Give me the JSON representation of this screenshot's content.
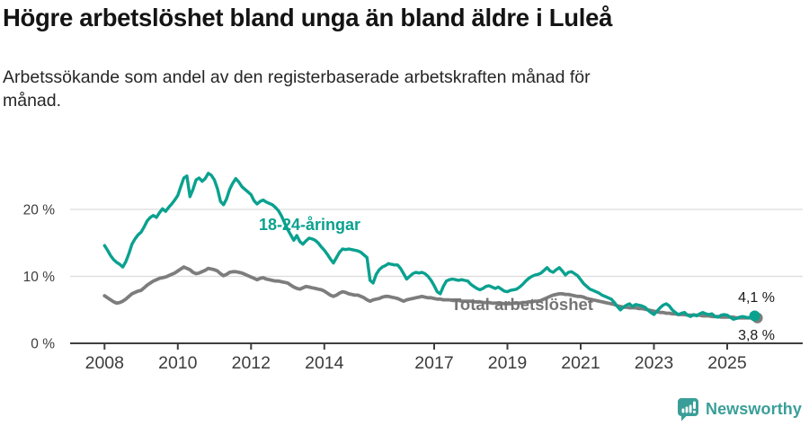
{
  "header": {
    "title": "Högre arbetslöshet bland unga än bland äldre i Luleå",
    "subtitle": "Arbetssökande som andel av den registerbaserade arbetskraften månad för månad."
  },
  "chart_data": {
    "type": "line",
    "unit": "%",
    "frequency": "monthly",
    "start_year": 2008,
    "start_month": 1,
    "end_year": 2025,
    "end_month": 10,
    "title": "Högre arbetslöshet bland unga än bland äldre i Luleå",
    "xlabel": "",
    "ylabel": "Arbetssökande som andel av den registerbaserade arbetskraften",
    "grid": "horizontal",
    "ylim": [
      0,
      26.5
    ],
    "x_ticks": [
      2008,
      2010,
      2012,
      2014,
      2017,
      2019,
      2021,
      2023,
      2025
    ],
    "y_gridlines": [
      10,
      20
    ],
    "y_ticks": [
      {
        "value": 0,
        "label": "0 %"
      },
      {
        "value": 10,
        "label": "10 %"
      },
      {
        "value": 20,
        "label": "20 %"
      }
    ],
    "series": [
      {
        "name": "Total arbetslöshet",
        "color": "#7d7d7d",
        "values": [
          7.1,
          6.8,
          6.5,
          6.2,
          6.0,
          6.1,
          6.3,
          6.6,
          7.0,
          7.4,
          7.6,
          7.8,
          7.9,
          8.3,
          8.7,
          9.0,
          9.3,
          9.5,
          9.7,
          9.8,
          9.9,
          10.1,
          10.3,
          10.5,
          10.8,
          11.1,
          11.4,
          11.2,
          11.0,
          10.6,
          10.4,
          10.5,
          10.7,
          10.9,
          11.2,
          11.1,
          11.0,
          10.8,
          10.4,
          10.1,
          10.3,
          10.6,
          10.7,
          10.7,
          10.6,
          10.5,
          10.3,
          10.1,
          9.9,
          9.7,
          9.5,
          9.7,
          9.8,
          9.6,
          9.5,
          9.4,
          9.3,
          9.3,
          9.2,
          9.1,
          9.0,
          8.7,
          8.4,
          8.2,
          8.1,
          8.3,
          8.5,
          8.4,
          8.3,
          8.2,
          8.1,
          8.0,
          7.8,
          7.5,
          7.2,
          7.0,
          7.2,
          7.5,
          7.7,
          7.6,
          7.4,
          7.3,
          7.2,
          7.2,
          7.0,
          6.8,
          6.5,
          6.3,
          6.5,
          6.6,
          6.7,
          6.9,
          7.0,
          7.0,
          6.9,
          6.8,
          6.7,
          6.5,
          6.3,
          6.5,
          6.6,
          6.7,
          6.8,
          6.9,
          7.0,
          6.9,
          6.8,
          6.8,
          6.7,
          6.6,
          6.6,
          6.5,
          6.5,
          6.5,
          6.4,
          6.4,
          6.4,
          6.3,
          6.3,
          6.3,
          6.3,
          6.2,
          6.2,
          6.2,
          6.1,
          6.1,
          6.1,
          6.0,
          6.0,
          6.0,
          6.0,
          5.9,
          5.9,
          5.9,
          6.0,
          6.0,
          6.0,
          6.1,
          6.1,
          6.2,
          6.2,
          6.3,
          6.3,
          6.4,
          6.6,
          6.8,
          7.0,
          7.2,
          7.3,
          7.4,
          7.4,
          7.3,
          7.3,
          7.2,
          7.1,
          7.0,
          7.0,
          6.9,
          6.7,
          6.6,
          6.5,
          6.4,
          6.3,
          6.2,
          6.1,
          6.0,
          5.9,
          5.8,
          5.6,
          5.5,
          5.4,
          5.4,
          5.3,
          5.3,
          5.3,
          5.2,
          5.2,
          5.1,
          5.0,
          4.9,
          4.8,
          4.7,
          4.6,
          4.6,
          4.5,
          4.5,
          4.4,
          4.4,
          4.3,
          4.3,
          4.3,
          4.2,
          4.2,
          4.2,
          4.2,
          4.2,
          4.1,
          4.1,
          4.1,
          4.0,
          4.0,
          4.0,
          3.9,
          3.9,
          3.9,
          3.9,
          3.9,
          3.8,
          3.8,
          3.8,
          3.8,
          3.8,
          3.8,
          3.8
        ]
      },
      {
        "name": "18-24-åringar",
        "color": "#0aa18f",
        "values": [
          14.6,
          13.9,
          13.1,
          12.5,
          12.1,
          11.8,
          11.4,
          12.2,
          13.4,
          14.8,
          15.6,
          16.2,
          16.6,
          17.4,
          18.3,
          18.8,
          19.1,
          18.8,
          19.5,
          20.1,
          19.7,
          20.3,
          20.8,
          21.4,
          22.1,
          23.4,
          24.7,
          25.0,
          21.9,
          23.0,
          24.4,
          24.7,
          24.2,
          24.6,
          25.4,
          25.1,
          24.4,
          23.1,
          21.2,
          20.7,
          21.6,
          23.0,
          23.9,
          24.6,
          24.1,
          23.4,
          23.0,
          22.6,
          22.2,
          21.3,
          20.8,
          21.2,
          21.4,
          21.1,
          20.9,
          20.7,
          20.3,
          19.8,
          19.0,
          18.0,
          17.0,
          16.2,
          15.4,
          16.1,
          15.2,
          14.8,
          15.3,
          15.7,
          15.6,
          15.4,
          15.0,
          14.4,
          13.9,
          13.3,
          12.6,
          12.0,
          12.8,
          13.6,
          14.1,
          14.0,
          14.1,
          14.0,
          13.9,
          13.8,
          13.6,
          13.2,
          12.8,
          9.4,
          9.0,
          10.3,
          11.0,
          11.4,
          11.6,
          11.9,
          11.8,
          11.7,
          11.7,
          11.2,
          10.4,
          9.6,
          10.0,
          10.4,
          10.6,
          10.5,
          10.6,
          10.4,
          10.0,
          9.4,
          8.6,
          7.7,
          7.4,
          8.5,
          9.3,
          9.5,
          9.6,
          9.5,
          9.4,
          9.5,
          9.4,
          9.3,
          8.8,
          8.5,
          8.2,
          8.0,
          8.2,
          8.5,
          8.6,
          8.4,
          8.2,
          8.4,
          8.1,
          7.8,
          7.7,
          7.9,
          8.0,
          8.1,
          8.4,
          8.8,
          9.3,
          9.7,
          10.0,
          10.2,
          10.3,
          10.5,
          10.9,
          11.3,
          10.8,
          10.6,
          11.0,
          11.3,
          10.8,
          10.2,
          10.6,
          10.7,
          10.4,
          10.1,
          9.5,
          8.9,
          8.5,
          8.1,
          7.9,
          7.7,
          7.5,
          7.2,
          7.0,
          6.8,
          6.6,
          6.1,
          5.5,
          5.0,
          5.4,
          5.7,
          5.9,
          5.5,
          5.8,
          5.7,
          5.6,
          5.4,
          5.0,
          4.6,
          4.3,
          4.8,
          5.3,
          5.7,
          5.9,
          5.6,
          5.0,
          4.6,
          4.3,
          4.5,
          4.6,
          4.2,
          4.0,
          4.3,
          4.1,
          4.4,
          4.6,
          4.4,
          4.3,
          4.4,
          4.0,
          3.9,
          4.2,
          4.3,
          4.2,
          3.9,
          3.6,
          3.7,
          3.9,
          4.0,
          3.9,
          3.8,
          4.0,
          4.1
        ]
      }
    ],
    "annotations": {
      "youth_latest": "4,1 %",
      "total_latest": "3,8 %"
    }
  },
  "footer": {
    "brand": "Newsworthy"
  }
}
